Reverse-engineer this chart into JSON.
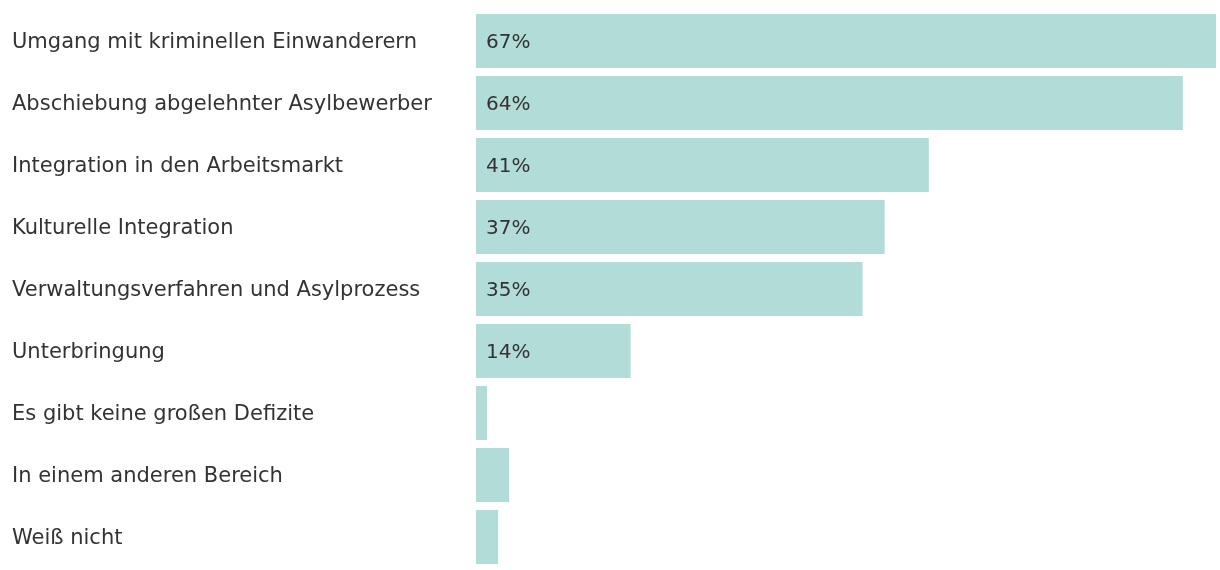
{
  "chart_data": {
    "type": "bar",
    "orientation": "horizontal",
    "categories": [
      "Umgang mit kriminellen Einwanderern",
      "Abschiebung abgelehnter Asylbewerber",
      "Integration in den Arbeitsmarkt",
      "Kulturelle Integration",
      "Verwaltungsverfahren und Asylprozess",
      "Unterbringung",
      "Es gibt keine großen Defizite",
      "In einem anderen Bereich",
      "Weiß nicht"
    ],
    "values": [
      67,
      64,
      41,
      37,
      35,
      14,
      1,
      3,
      2
    ],
    "value_labels": [
      "67%",
      "64%",
      "41%",
      "37%",
      "35%",
      "14%",
      null,
      null,
      null
    ],
    "color": "#b2dcd8"
  }
}
